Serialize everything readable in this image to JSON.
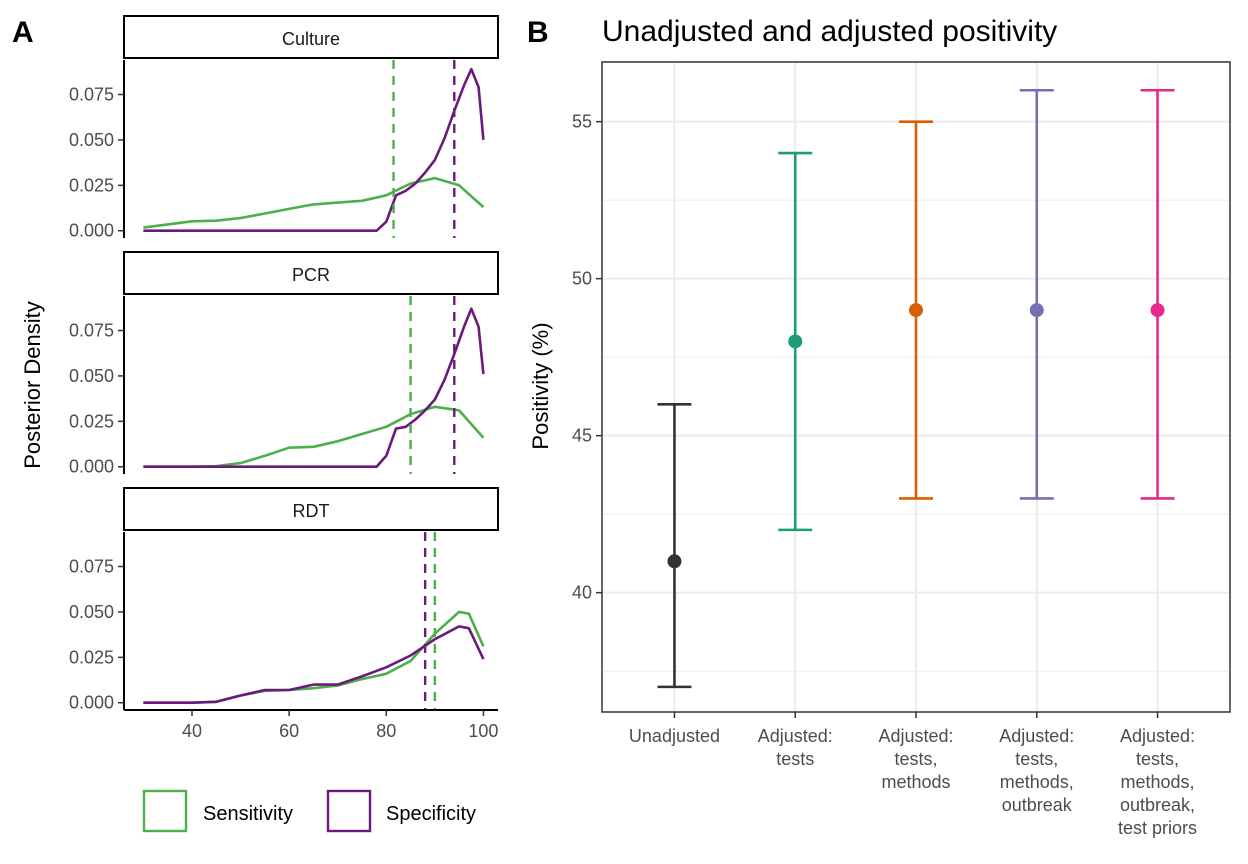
{
  "panels": {
    "a_label": "A",
    "b_label": "B"
  },
  "colors": {
    "sensitivity": "#4DAF4A",
    "specificity": "#6A1B7A",
    "grid": "#EBEBEB"
  },
  "chart_data": [
    {
      "type": "line",
      "panel": "A",
      "title": "",
      "xlabel": "",
      "ylabel": "Posterior Density",
      "xlim": [
        26,
        103
      ],
      "ylim": [
        -0.004,
        0.094
      ],
      "x_ticks": [
        40,
        60,
        80,
        100
      ],
      "y_ticks": [
        0.0,
        0.025,
        0.05,
        0.075
      ],
      "y_tick_labels": [
        "0.000",
        "0.025",
        "0.050",
        "0.075"
      ],
      "grid": false,
      "legend": {
        "position": "bottom",
        "entries": [
          {
            "name": "Sensitivity",
            "color": "#4DAF4A"
          },
          {
            "name": "Specificity",
            "color": "#6A1B7A"
          }
        ]
      },
      "facets": [
        {
          "name": "Culture",
          "vlines": [
            {
              "series": "Sensitivity",
              "x": 81.5
            },
            {
              "series": "Specificity",
              "x": 94.0
            }
          ],
          "series": [
            {
              "name": "Sensitivity",
              "x": [
                30,
                35,
                40,
                45,
                50,
                55,
                60,
                65,
                70,
                75,
                80,
                85,
                90,
                95,
                100
              ],
              "values": [
                0.0017,
                0.0035,
                0.0052,
                0.0055,
                0.007,
                0.0095,
                0.012,
                0.0145,
                0.0155,
                0.0165,
                0.0195,
                0.026,
                0.029,
                0.025,
                0.013
              ]
            },
            {
              "name": "Specificity",
              "x": [
                30,
                40,
                50,
                60,
                70,
                78,
                80,
                82,
                84,
                86,
                88,
                90,
                92,
                94,
                96,
                97.5,
                99,
                100
              ],
              "values": [
                0,
                0,
                0,
                0,
                0,
                0,
                0.005,
                0.0195,
                0.022,
                0.026,
                0.032,
                0.039,
                0.051,
                0.066,
                0.08,
                0.089,
                0.079,
                0.05
              ]
            }
          ]
        },
        {
          "name": "PCR",
          "vlines": [
            {
              "series": "Sensitivity",
              "x": 85.0
            },
            {
              "series": "Specificity",
              "x": 94.0
            }
          ],
          "series": [
            {
              "name": "Sensitivity",
              "x": [
                30,
                40,
                45,
                50,
                55,
                60,
                65,
                70,
                75,
                80,
                85,
                90,
                95,
                100
              ],
              "values": [
                0,
                0,
                0.0003,
                0.002,
                0.006,
                0.0105,
                0.011,
                0.014,
                0.018,
                0.022,
                0.029,
                0.033,
                0.031,
                0.016
              ]
            },
            {
              "name": "Specificity",
              "x": [
                30,
                40,
                50,
                60,
                70,
                78,
                80,
                82,
                84,
                86,
                88,
                90,
                92,
                94,
                96,
                97.5,
                99,
                100
              ],
              "values": [
                0,
                0,
                0,
                0,
                0,
                0,
                0.006,
                0.021,
                0.022,
                0.026,
                0.031,
                0.037,
                0.048,
                0.062,
                0.077,
                0.087,
                0.077,
                0.051
              ]
            }
          ]
        },
        {
          "name": "RDT",
          "vlines": [
            {
              "series": "Specificity",
              "x": 88.0
            },
            {
              "series": "Sensitivity",
              "x": 90.0
            }
          ],
          "series": [
            {
              "name": "Sensitivity",
              "x": [
                30,
                40,
                45,
                50,
                55,
                60,
                65,
                70,
                75,
                80,
                85,
                90,
                95,
                97,
                100
              ],
              "values": [
                0,
                0,
                0.0005,
                0.004,
                0.0065,
                0.007,
                0.008,
                0.0095,
                0.013,
                0.016,
                0.023,
                0.038,
                0.05,
                0.049,
                0.031
              ]
            },
            {
              "name": "Specificity",
              "x": [
                30,
                40,
                45,
                50,
                55,
                60,
                65,
                70,
                75,
                80,
                85,
                90,
                95,
                97,
                100
              ],
              "values": [
                0,
                0,
                0.0005,
                0.004,
                0.007,
                0.007,
                0.01,
                0.01,
                0.0145,
                0.0195,
                0.026,
                0.035,
                0.042,
                0.041,
                0.024
              ]
            }
          ]
        }
      ]
    },
    {
      "type": "errorbar",
      "panel": "B",
      "title": "Unadjusted and adjusted positivity",
      "xlabel": "",
      "ylabel": "Positivity (%)",
      "ylim": [
        36.2,
        56.9
      ],
      "y_ticks": [
        40,
        45,
        50,
        55
      ],
      "grid": true,
      "categories": [
        [
          "Unadjusted"
        ],
        [
          "Adjusted:",
          "tests"
        ],
        [
          "Adjusted:",
          "tests,",
          "methods"
        ],
        [
          "Adjusted:",
          "tests,",
          "methods,",
          "outbreak"
        ],
        [
          "Adjusted:",
          "tests,",
          "methods,",
          "outbreak,",
          "test priors"
        ]
      ],
      "points": [
        {
          "estimate": 41,
          "lower": 37,
          "upper": 46,
          "color": "#333333"
        },
        {
          "estimate": 48,
          "lower": 42,
          "upper": 54,
          "color": "#1B9E77"
        },
        {
          "estimate": 49,
          "lower": 43,
          "upper": 55,
          "color": "#D95F02"
        },
        {
          "estimate": 49,
          "lower": 43,
          "upper": 56,
          "color": "#7570B3"
        },
        {
          "estimate": 49,
          "lower": 43,
          "upper": 56,
          "color": "#E7298A"
        }
      ]
    }
  ]
}
